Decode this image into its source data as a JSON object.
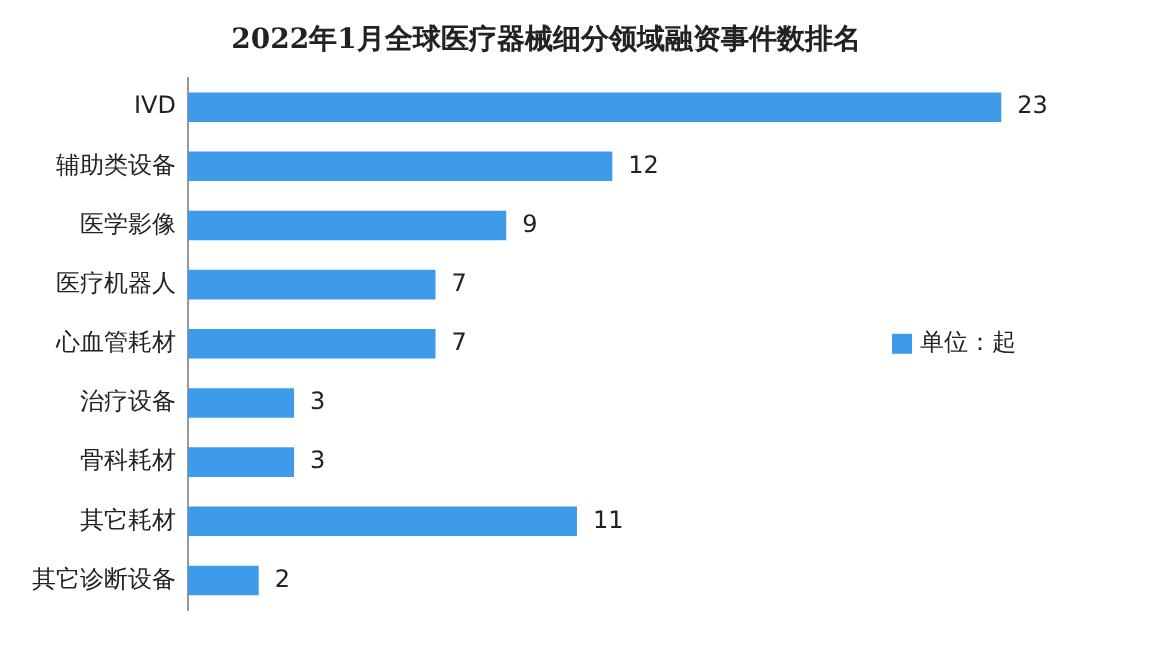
{
  "chart_data": {
    "type": "bar",
    "orientation": "horizontal",
    "title": "2022年1月全球医疗器械细分领域融资事件数排名",
    "categories": [
      "IVD",
      "辅助类设备",
      "医学影像",
      "医疗机器人",
      "心血管耗材",
      "治疗设备",
      "骨科耗材",
      "其它耗材",
      "其它诊断设备"
    ],
    "series": [
      {
        "name": "单位：起",
        "color": "#3d9be9",
        "values": [
          23,
          12,
          9,
          7,
          7,
          3,
          3,
          11,
          2
        ]
      }
    ],
    "data_labels": true,
    "legend": "right",
    "grid": false
  }
}
